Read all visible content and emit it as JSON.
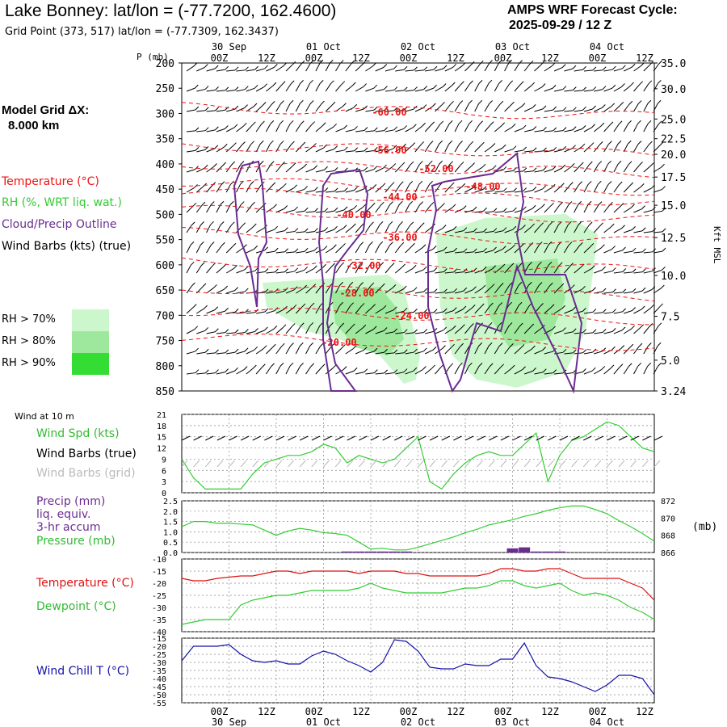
{
  "header": {
    "title": "Lake Bonney:  lat/lon = (-77.7200, 162.4600)",
    "grid_point": "Grid Point (373, 517) lat/lon = (-77.7309, 162.3437)",
    "cycle_line1": "AMPS WRF Forecast Cycle:",
    "cycle_line2": "2025-09-29 / 12  Z"
  },
  "model_grid": {
    "line1": "Model Grid ΔX:",
    "line2": "8.000 km"
  },
  "legend": {
    "temperature": "Temperature (°C)",
    "rh": "RH (%, WRT liq. wat.)",
    "cloud": "Cloud/Precip Outline",
    "wind": "Wind Barbs (kts) (true)",
    "rh70": "RH > 70%",
    "rh80": "RH > 80%",
    "rh90": "RH > 90%"
  },
  "colors": {
    "temperature": "#ee1111",
    "rh": "#33cc33",
    "cloud": "#6a2c91",
    "rh70": "#ccf7cc",
    "rh80": "#9ee89e",
    "rh90": "#33dd33",
    "windchill": "#1111aa",
    "precip": "#6a2c91"
  },
  "axes": {
    "p_label": "P (mb)",
    "kft_label": "Kft MSL",
    "mb_label": "(mb)",
    "time_ticks": [
      "00Z",
      "12Z",
      "00Z",
      "12Z",
      "00Z",
      "12Z",
      "00Z",
      "12Z",
      "00Z",
      "12Z"
    ],
    "date_labels": [
      "30 Sep",
      "01 Oct",
      "02 Oct",
      "03 Oct",
      "04 Oct"
    ],
    "pressure_levels": [
      "200",
      "250",
      "300",
      "350",
      "400",
      "450",
      "500",
      "550",
      "600",
      "650",
      "700",
      "750",
      "800",
      "850"
    ],
    "kft_levels": [
      "35.0",
      "30.0",
      "25.0",
      "22.5",
      "20.0",
      "17.5",
      "15.0",
      "12.5",
      "10.0",
      "7.5",
      "5.0",
      "3.24"
    ]
  },
  "panels": {
    "wind10_title": "Wind at 10 m",
    "wind_spd": "Wind Spd (kts)",
    "wind_barbs_true": "Wind Barbs (true)",
    "wind_barbs_grid": "Wind Barbs (grid)",
    "precip_l1": "Precip (mm)",
    "precip_l2": "liq. equiv.",
    "precip_l3": "3-hr accum",
    "pressure": "Pressure (mb)",
    "temperature": "Temperature (°C)",
    "dewpoint": "Dewpoint (°C)",
    "windchill": "Wind Chill T (°C)"
  },
  "chart_data": [
    {
      "type": "line",
      "name": "cross-section",
      "x_hours": [
        0,
        120
      ],
      "ylim_mb": [
        200,
        850
      ],
      "isotherm_labels": [
        "-60.00",
        "-56.00",
        "-52.00",
        "-48.00",
        "-44.00",
        "-40.00",
        "-36.00",
        "-32.00",
        "-28.00",
        "-24.00",
        "-20.00"
      ]
    },
    {
      "type": "line",
      "name": "wind-speed-10m",
      "yticks": [
        "21",
        "18",
        "15",
        "12",
        "9",
        "6",
        "3",
        "0"
      ],
      "ylim": [
        0,
        21
      ],
      "x": [
        0,
        3,
        6,
        9,
        12,
        15,
        18,
        21,
        24,
        27,
        30,
        33,
        36,
        39,
        42,
        45,
        48,
        51,
        54,
        57,
        60,
        63,
        66,
        69,
        72,
        75,
        78,
        81,
        84,
        87,
        90,
        93,
        96,
        99,
        102,
        105,
        108,
        111,
        114,
        117,
        120
      ],
      "values": [
        9,
        4,
        1,
        1,
        1,
        1,
        5,
        8,
        9,
        10,
        10,
        11,
        13,
        12,
        8,
        10,
        9,
        8,
        9,
        12,
        15,
        3,
        1,
        5,
        8,
        10,
        11,
        10,
        10,
        13,
        16,
        3,
        10,
        14,
        15,
        17,
        19,
        18,
        15,
        12,
        11
      ]
    },
    {
      "type": "line",
      "name": "precip-pressure",
      "precip_yticks": [
        "2.5",
        "2.0",
        "1.5",
        "1.0",
        "0.5",
        "0.0"
      ],
      "pressure_yticks": [
        "872",
        "870",
        "868",
        "866"
      ],
      "precip_ylim": [
        0,
        2.5
      ],
      "pressure_ylim": [
        866,
        872
      ],
      "x": [
        0,
        3,
        6,
        9,
        12,
        15,
        18,
        21,
        24,
        27,
        30,
        33,
        36,
        39,
        42,
        45,
        48,
        51,
        54,
        57,
        60,
        63,
        66,
        69,
        72,
        75,
        78,
        81,
        84,
        87,
        90,
        93,
        96,
        99,
        102,
        105,
        108,
        111,
        114,
        117,
        120
      ],
      "pressure": [
        869.0,
        869.6,
        869.6,
        869.4,
        869.4,
        869.3,
        869.2,
        868.6,
        868.0,
        868.5,
        868.8,
        868.6,
        868.3,
        868.2,
        868.0,
        867.2,
        866.4,
        866.5,
        866.3,
        866.3,
        866.6,
        867.0,
        867.4,
        867.8,
        868.3,
        868.7,
        869.2,
        869.5,
        869.8,
        870.2,
        870.5,
        870.9,
        871.2,
        871.4,
        871.4,
        871.0,
        870.5,
        869.7,
        869.0,
        868.2,
        867.3
      ],
      "precip_bars": [
        {
          "x": 42,
          "value": 0.05
        },
        {
          "x": 45,
          "value": 0.05
        },
        {
          "x": 48,
          "value": 0.05
        },
        {
          "x": 51,
          "value": 0.05
        },
        {
          "x": 54,
          "value": 0.05
        },
        {
          "x": 57,
          "value": 0.05
        },
        {
          "x": 84,
          "value": 0.2
        },
        {
          "x": 87,
          "value": 0.25
        },
        {
          "x": 90,
          "value": 0.05
        },
        {
          "x": 93,
          "value": 0.05
        },
        {
          "x": 96,
          "value": 0.05
        }
      ]
    },
    {
      "type": "line",
      "name": "temperature-dewpoint",
      "yticks": [
        "-10",
        "-15",
        "-20",
        "-25",
        "-30",
        "-35",
        "-40"
      ],
      "ylim": [
        -40,
        -10
      ],
      "x": [
        0,
        3,
        6,
        9,
        12,
        15,
        18,
        21,
        24,
        27,
        30,
        33,
        36,
        39,
        42,
        45,
        48,
        51,
        54,
        57,
        60,
        63,
        66,
        69,
        72,
        75,
        78,
        81,
        84,
        87,
        90,
        93,
        96,
        99,
        102,
        105,
        108,
        111,
        114,
        117,
        120
      ],
      "series": [
        {
          "name": "Temperature",
          "values": [
            -18,
            -19,
            -19,
            -18,
            -17.5,
            -17,
            -17,
            -16,
            -15,
            -15,
            -16,
            -15,
            -15,
            -15,
            -15,
            -16,
            -15,
            -15,
            -15,
            -16,
            -16,
            -17,
            -17,
            -17,
            -17,
            -17,
            -16,
            -14,
            -14,
            -15,
            -15,
            -14,
            -14,
            -16,
            -18,
            -18,
            -18,
            -18,
            -20,
            -22,
            -27
          ]
        },
        {
          "name": "Dewpoint",
          "values": [
            -37,
            -36,
            -35,
            -35,
            -35,
            -29,
            -27,
            -26,
            -25,
            -25,
            -24,
            -23,
            -23,
            -23,
            -23,
            -22,
            -20,
            -22,
            -23,
            -24,
            -24,
            -24,
            -24,
            -23,
            -22,
            -22,
            -21,
            -19,
            -19,
            -21,
            -22,
            -21,
            -20,
            -23,
            -25,
            -24,
            -25,
            -27,
            -30,
            -32,
            -35
          ]
        }
      ]
    },
    {
      "type": "line",
      "name": "wind-chill",
      "yticks": [
        "-15",
        "-20",
        "-25",
        "-30",
        "-35",
        "-40",
        "-45",
        "-50",
        "-55"
      ],
      "ylim": [
        -55,
        -15
      ],
      "x": [
        0,
        3,
        6,
        9,
        12,
        15,
        18,
        21,
        24,
        27,
        30,
        33,
        36,
        39,
        42,
        45,
        48,
        51,
        54,
        57,
        60,
        63,
        66,
        69,
        72,
        75,
        78,
        81,
        84,
        87,
        90,
        93,
        96,
        99,
        102,
        105,
        108,
        111,
        114,
        117,
        120
      ],
      "values": [
        -29,
        -20,
        -20,
        -20,
        -19,
        -25,
        -29,
        -30,
        -29,
        -31,
        -31,
        -26,
        -23,
        -25,
        -29,
        -32,
        -36,
        -30,
        -16,
        -17,
        -23,
        -33,
        -34,
        -34,
        -31,
        -32,
        -32,
        -28,
        -28,
        -18,
        -32,
        -39,
        -40,
        -42,
        -45,
        -48,
        -44,
        -38,
        -38,
        -40,
        -50
      ]
    }
  ]
}
